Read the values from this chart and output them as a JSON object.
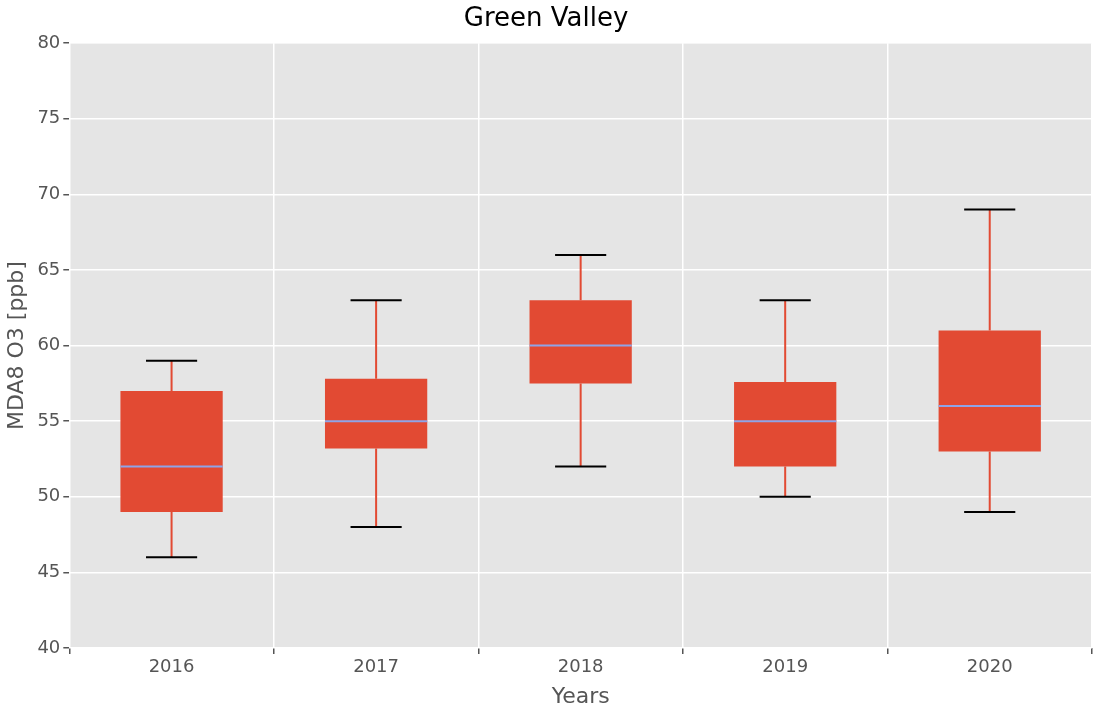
{
  "chart_data": {
    "type": "box",
    "title": "Green Valley",
    "xlabel": "Years",
    "ylabel": "MDA8 O3 [ppb]",
    "categories": [
      "2016",
      "2017",
      "2018",
      "2019",
      "2020"
    ],
    "boxes": [
      {
        "low": 46,
        "q1": 49,
        "median": 52,
        "q3": 57,
        "high": 59
      },
      {
        "low": 48,
        "q1": 53.2,
        "median": 55,
        "q3": 57.8,
        "high": 63
      },
      {
        "low": 52,
        "q1": 57.5,
        "median": 60,
        "q3": 63,
        "high": 66
      },
      {
        "low": 50,
        "q1": 52,
        "median": 55,
        "q3": 57.6,
        "high": 63
      },
      {
        "low": 49,
        "q1": 53,
        "median": 56,
        "q3": 61,
        "high": 69
      }
    ],
    "color": "#e24a33",
    "ylim": [
      40,
      80
    ],
    "yticks": [
      40,
      45,
      50,
      55,
      60,
      65,
      70,
      75,
      80
    ],
    "grid": true
  }
}
